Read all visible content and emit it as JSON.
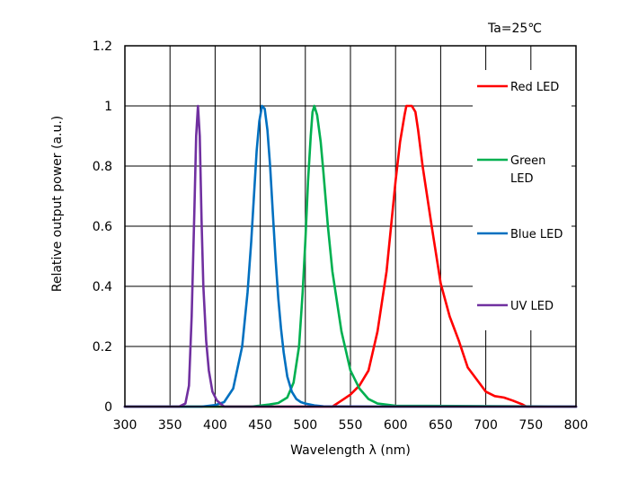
{
  "chart_data": {
    "type": "line",
    "annotation": "Ta=25℃",
    "xlabel": "Wavelength λ (nm)",
    "ylabel": "Relative output power (a.u.)",
    "xlim": [
      300,
      800
    ],
    "ylim": [
      0,
      1.2
    ],
    "xticks": [
      "300",
      "350",
      "400",
      "450",
      "500",
      "550",
      "600",
      "650",
      "700",
      "750",
      "800"
    ],
    "yticks": [
      "0",
      "0.2",
      "0.4",
      "0.6",
      "0.8",
      "1",
      "1.2"
    ],
    "grid": true,
    "legend_position": "right",
    "series": [
      {
        "name": "Red LED",
        "legend_lines": [
          "Red LED"
        ],
        "color": "#ff0000",
        "x": [
          300,
          530,
          540,
          550,
          560,
          570,
          580,
          590,
          595,
          600,
          605,
          610,
          612,
          618,
          622,
          625,
          630,
          640,
          650,
          660,
          670,
          680,
          690,
          700,
          710,
          720,
          730,
          740,
          745,
          800
        ],
        "y": [
          0,
          0,
          0.02,
          0.04,
          0.07,
          0.12,
          0.25,
          0.45,
          0.6,
          0.75,
          0.88,
          0.97,
          1.0,
          1.0,
          0.98,
          0.92,
          0.8,
          0.6,
          0.41,
          0.3,
          0.22,
          0.13,
          0.09,
          0.05,
          0.035,
          0.03,
          0.02,
          0.008,
          0,
          0
        ]
      },
      {
        "name": "Green LED",
        "legend_lines": [
          "Green",
          "LED"
        ],
        "color": "#00b050",
        "x": [
          300,
          440,
          460,
          470,
          480,
          487,
          493,
          497,
          500,
          503,
          506,
          508,
          510,
          513,
          517,
          520,
          525,
          530,
          540,
          550,
          560,
          570,
          580,
          600,
          800
        ],
        "y": [
          0,
          0,
          0.007,
          0.012,
          0.03,
          0.08,
          0.2,
          0.38,
          0.55,
          0.75,
          0.9,
          0.98,
          1.0,
          0.97,
          0.88,
          0.78,
          0.6,
          0.45,
          0.25,
          0.12,
          0.06,
          0.025,
          0.01,
          0.003,
          0
        ]
      },
      {
        "name": "Blue LED",
        "legend_lines": [
          "Blue LED"
        ],
        "color": "#0070c0",
        "x": [
          300,
          385,
          400,
          410,
          420,
          430,
          436,
          440,
          443,
          446,
          449,
          452,
          455,
          458,
          461,
          464,
          467,
          470,
          473,
          476,
          480,
          485,
          490,
          495,
          500,
          510,
          520,
          600,
          800
        ],
        "y": [
          0,
          0,
          0.005,
          0.015,
          0.06,
          0.2,
          0.38,
          0.55,
          0.7,
          0.85,
          0.95,
          1.0,
          0.99,
          0.92,
          0.8,
          0.64,
          0.49,
          0.36,
          0.26,
          0.18,
          0.1,
          0.05,
          0.025,
          0.015,
          0.01,
          0.004,
          0.001,
          0,
          0
        ]
      },
      {
        "name": "UV LED",
        "legend_lines": [
          "UV  LED"
        ],
        "color": "#7030a0",
        "x": [
          300,
          360,
          367,
          371,
          374,
          377,
          379,
          381,
          383,
          385,
          387,
          390,
          393,
          397,
          402,
          410,
          800
        ],
        "y": [
          0,
          0,
          0.01,
          0.07,
          0.3,
          0.65,
          0.9,
          1.0,
          0.9,
          0.62,
          0.4,
          0.22,
          0.12,
          0.05,
          0.02,
          0,
          0
        ]
      }
    ]
  }
}
